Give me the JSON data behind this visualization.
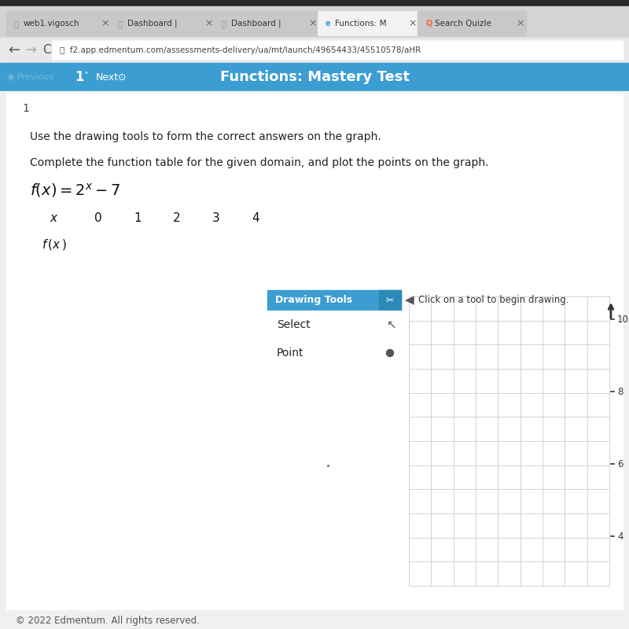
{
  "browser_bg": "#c8c8c8",
  "tab_bar_bg": "#d4d4d4",
  "tab_names": [
    "web1.vigosch",
    "Dashboard |",
    "Dashboard |",
    "Functions: M",
    "Search Quizle"
  ],
  "tab_active_idx": 3,
  "tab_active_color": "#f2f2f2",
  "tab_inactive_color": "#c8c8c8",
  "addr_bar_bg": "#e8e8e8",
  "url_text": "f2.app.edmentum.com/assessments-delivery/ua/mt/launch/49654433/45510578/aHR",
  "nav_bar_color": "#3b9dd2",
  "nav_bar_text": "Functions: Mastery Test",
  "content_bg": "#f0f0f0",
  "white": "#ffffff",
  "instruction1": "Use the drawing tools to form the correct answers on the graph.",
  "instruction2": "Complete the function table for the given domain, and plot the points on the graph.",
  "drawing_tools_header": "Drawing Tools",
  "drawing_tools_header_bg": "#3b9dd2",
  "click_text": "Click on a tool to begin drawing.",
  "graph_y_ticks": [
    "10",
    "8",
    "6",
    "4"
  ],
  "footer_text": "© 2022 Edmentum. All rights reserved.",
  "footer_bg": "#f0f0f0",
  "table_bg": "#ffffff",
  "table_border": "#888888",
  "graph_grid_color": "#cccccc",
  "text_color": "#222222"
}
